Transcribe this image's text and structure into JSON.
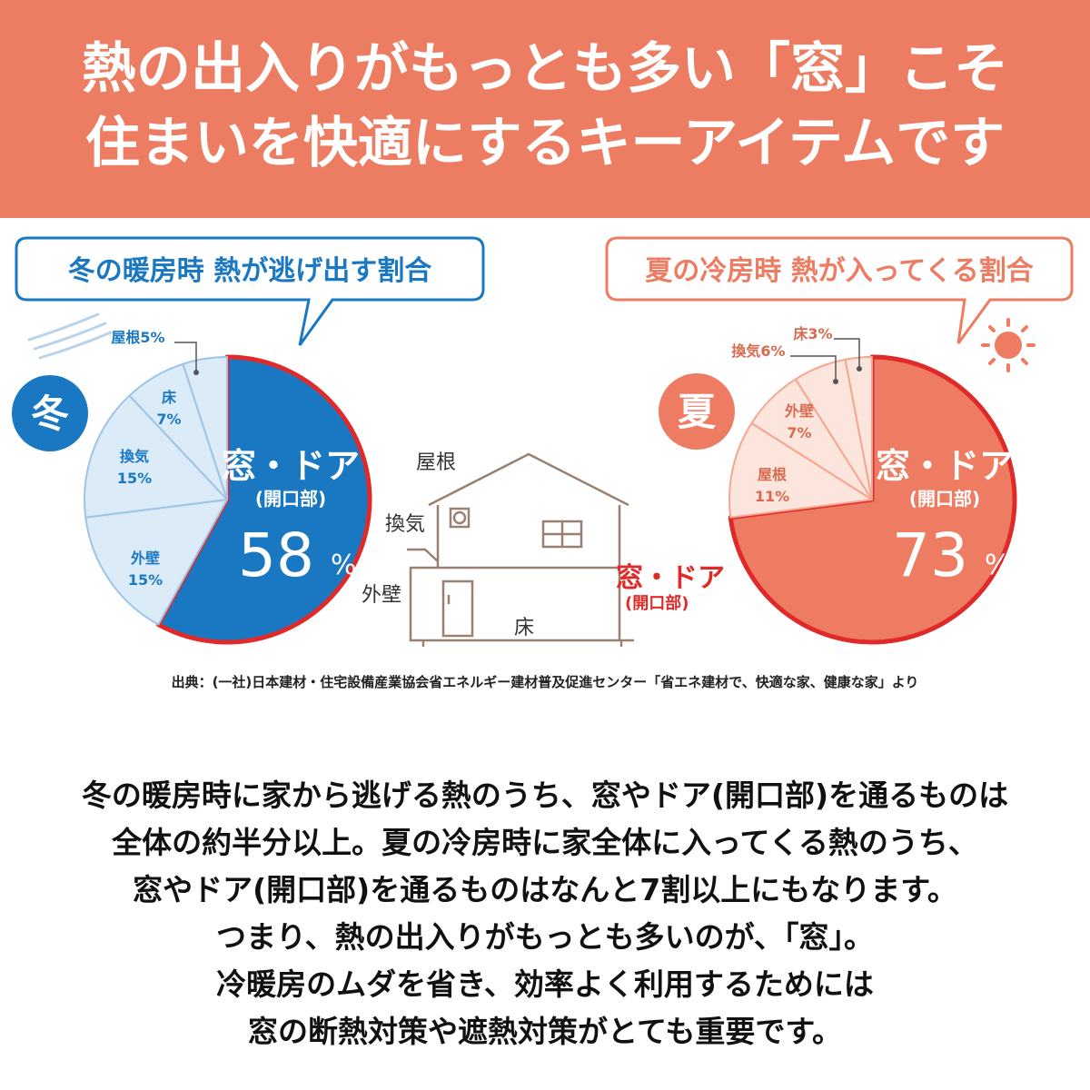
{
  "header": {
    "line1": "熱の出入りがもっとも多い「窓」こそ",
    "line2": "住まいを快適にするキーアイテムです"
  },
  "colors": {
    "banner": "#ec7d62",
    "winter_main": "#1a78c2",
    "winter_light": "#dcebf8",
    "summer_main": "#ee7c62",
    "summer_light": "#fce5dc",
    "highlight_red": "#e02a2a",
    "house_line": "#9a8070"
  },
  "chart_data": [
    {
      "type": "pie",
      "title": "冬の暖房時 熱が逃げ出す割合",
      "badge": "冬",
      "icon": "wind-icon",
      "slices": [
        {
          "label": "窓・ドア",
          "sublabel": "(開口部)",
          "value": 58,
          "unit": "%"
        },
        {
          "label": "外壁",
          "value": 15,
          "unit": "%"
        },
        {
          "label": "換気",
          "value": 15,
          "unit": "%"
        },
        {
          "label": "床",
          "value": 7,
          "unit": "%"
        },
        {
          "label": "屋根",
          "value": 5,
          "unit": "%"
        }
      ]
    },
    {
      "type": "pie",
      "title": "夏の冷房時 熱が入ってくる割合",
      "badge": "夏",
      "icon": "sun-icon",
      "slices": [
        {
          "label": "窓・ドア",
          "sublabel": "(開口部)",
          "value": 73,
          "unit": "%"
        },
        {
          "label": "屋根",
          "value": 11,
          "unit": "%"
        },
        {
          "label": "外壁",
          "value": 7,
          "unit": "%"
        },
        {
          "label": "換気",
          "value": 6,
          "unit": "%"
        },
        {
          "label": "床",
          "value": 3,
          "unit": "%"
        }
      ]
    }
  ],
  "house": {
    "roof": "屋根",
    "vent": "換気",
    "wall": "外壁",
    "floor": "床",
    "window_door": "窓・ドア",
    "opening": "(開口部)"
  },
  "source": "出典：(一社)日本建材・住宅設備産業協会省エネルギー建材普及促進センター「省エネ建材で、快適な家、健康な家」より",
  "body_lines": [
    "冬の暖房時に家から逃げる熱のうち、窓やドア(開口部)を通るものは",
    "全体の約半分以上。夏の冷房時に家全体に入ってくる熱のうち、",
    "窓やドア(開口部)を通るものはなんと7割以上にもなります。",
    "つまり、熱の出入りがもっとも多いのが、「窓」。",
    "冷暖房のムダを省き、効率よく利用するためには",
    "窓の断熱対策や遮熱対策がとても重要です。"
  ]
}
